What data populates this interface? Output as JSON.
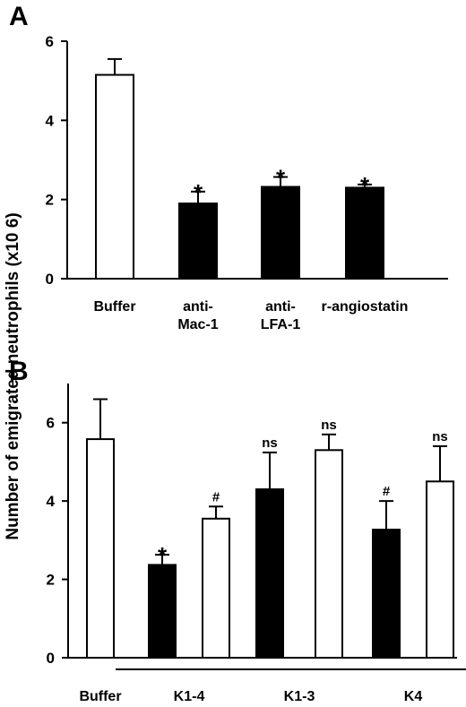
{
  "ylabel": "Number of emigrated neutrophils (x10 6)",
  "chart_data": [
    {
      "panel": "A",
      "type": "bar",
      "ylim": [
        0,
        6
      ],
      "yticks": [
        0,
        2,
        4,
        6
      ],
      "bars": [
        {
          "label": "Buffer",
          "value": 5.15,
          "err": 0.4,
          "fill": "white",
          "mark": ""
        },
        {
          "label": "anti-\nMac-1",
          "value": 1.9,
          "err": 0.3,
          "fill": "black",
          "mark": "*"
        },
        {
          "label": "anti-\nLFA-1",
          "value": 2.32,
          "err": 0.25,
          "fill": "black",
          "mark": "*"
        },
        {
          "label": "r-angiostatin",
          "value": 2.3,
          "err": 0.08,
          "fill": "black",
          "mark": "*"
        }
      ]
    },
    {
      "panel": "B",
      "type": "bar",
      "ylim": [
        0,
        7
      ],
      "yticks": [
        0,
        2,
        4,
        6
      ],
      "bars": [
        {
          "value": 5.58,
          "err": 1.02,
          "fill": "white",
          "mark": ""
        },
        {
          "value": 2.37,
          "err": 0.26,
          "fill": "black",
          "mark": "*"
        },
        {
          "value": 3.55,
          "err": 0.31,
          "fill": "white",
          "mark": "#"
        },
        {
          "value": 4.3,
          "err": 0.94,
          "fill": "black",
          "mark": "ns"
        },
        {
          "value": 5.3,
          "err": 0.4,
          "fill": "white",
          "mark": "ns"
        },
        {
          "value": 3.27,
          "err": 0.73,
          "fill": "black",
          "mark": "#"
        },
        {
          "value": 4.5,
          "err": 0.9,
          "fill": "white",
          "mark": "ns"
        }
      ],
      "groups": [
        {
          "label": "Buffer",
          "bars": [
            0
          ],
          "underline": false
        },
        {
          "label": "K1-4",
          "bars": [
            1,
            2
          ],
          "underline": true
        },
        {
          "label": "K1-3",
          "bars": [
            3,
            4
          ],
          "underline": true
        },
        {
          "label": "K4",
          "bars": [
            5,
            6
          ],
          "underline": true
        }
      ]
    }
  ]
}
